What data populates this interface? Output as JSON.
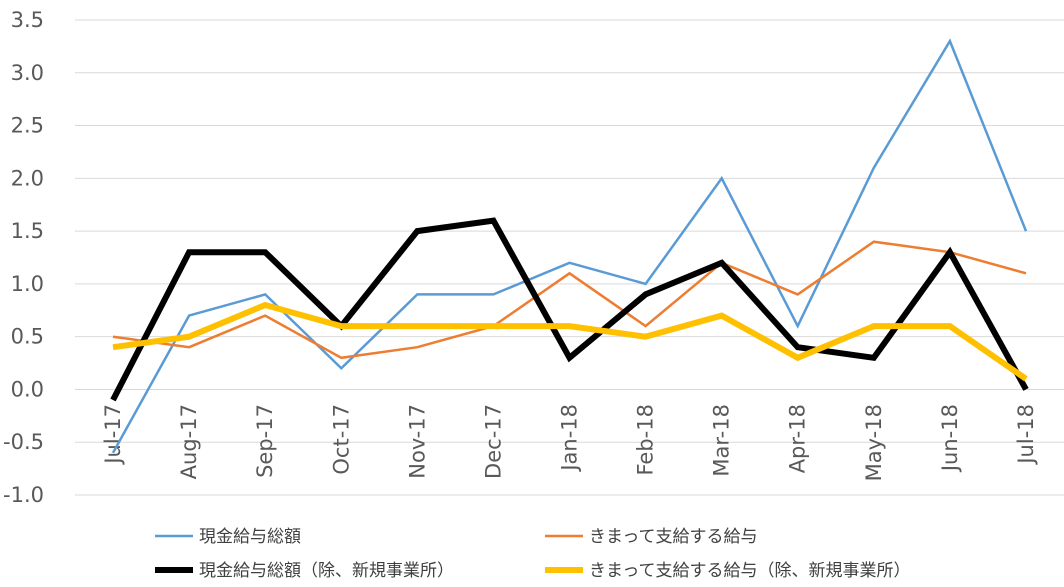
{
  "chart_data": {
    "type": "line",
    "categories": [
      "Jul-17",
      "Aug-17",
      "Sep-17",
      "Oct-17",
      "Nov-17",
      "Dec-17",
      "Jan-18",
      "Feb-18",
      "Mar-18",
      "Apr-18",
      "May-18",
      "Jun-18",
      "Jul-18"
    ],
    "ylim": [
      -1.0,
      3.5
    ],
    "yticks": [
      "-1.0",
      "-0.5",
      "0.0",
      "0.5",
      "1.0",
      "1.5",
      "2.0",
      "2.5",
      "3.0",
      "3.5"
    ],
    "grid": true,
    "legend_position": "bottom",
    "series": [
      {
        "name": "現金給与総額",
        "color": "#5b9bd5",
        "width": 2.5,
        "values": [
          -0.6,
          0.7,
          0.9,
          0.2,
          0.9,
          0.9,
          1.2,
          1.0,
          2.0,
          0.6,
          2.1,
          3.3,
          1.5
        ]
      },
      {
        "name": "きまって支給する給与",
        "color": "#ed7d31",
        "width": 2.5,
        "values": [
          0.5,
          0.4,
          0.7,
          0.3,
          0.4,
          0.6,
          1.1,
          0.6,
          1.2,
          0.9,
          1.4,
          1.3,
          1.1
        ]
      },
      {
        "name": "現金給与総額（除、新規事業所）",
        "color": "#000000",
        "width": 6,
        "values": [
          -0.1,
          1.3,
          1.3,
          0.6,
          1.5,
          1.6,
          0.3,
          0.9,
          1.2,
          0.4,
          0.3,
          1.3,
          0.0
        ]
      },
      {
        "name": "きまって支給する給与（除、新規事業所）",
        "color": "#ffc000",
        "width": 6,
        "values": [
          0.4,
          0.5,
          0.8,
          0.6,
          0.6,
          0.6,
          0.6,
          0.5,
          0.7,
          0.3,
          0.6,
          0.6,
          0.1
        ]
      }
    ]
  }
}
